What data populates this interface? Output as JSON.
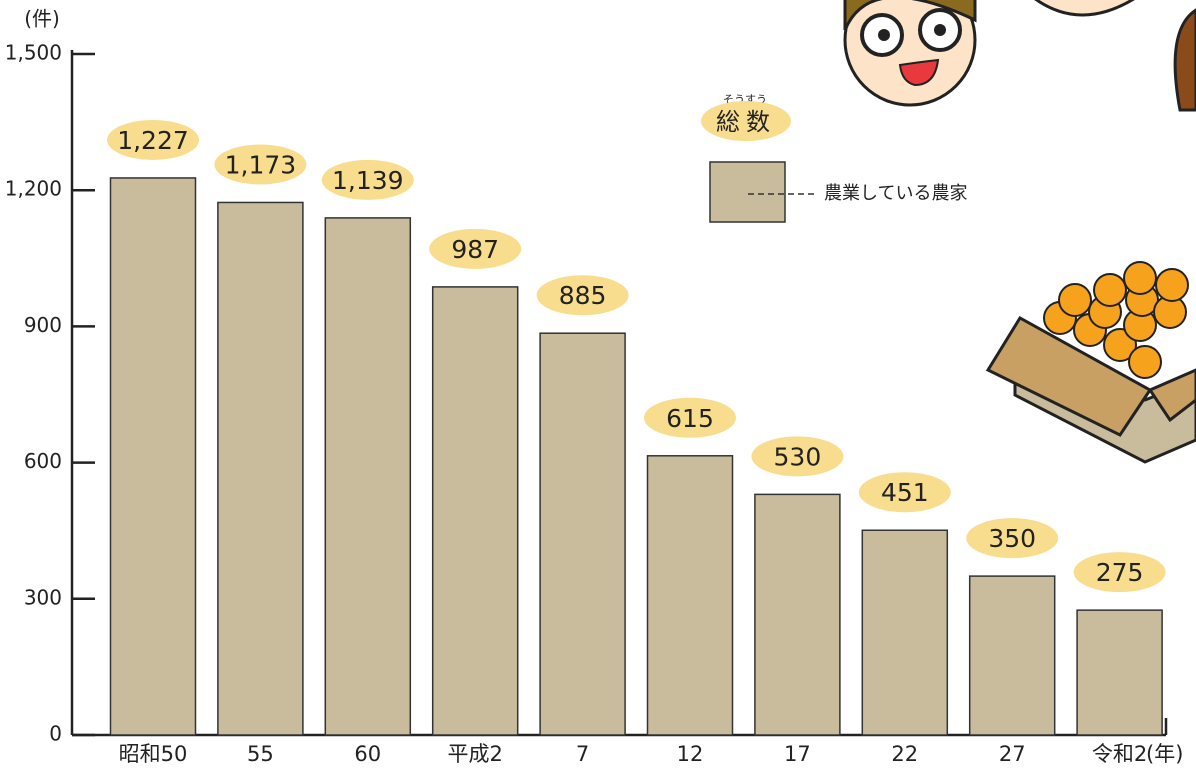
{
  "chart_data": {
    "type": "bar",
    "y_label": "(件)",
    "x_label": "(年)",
    "legend_title": "総数",
    "legend_title_reading": "そうすう",
    "categories": [
      "昭和50",
      "55",
      "60",
      "平成2",
      "7",
      "12",
      "17",
      "22",
      "27",
      "令和2"
    ],
    "series": [
      {
        "name": "農業している農家",
        "color": "#c9bc9c",
        "values": [
          1227,
          1173,
          1139,
          987,
          885,
          615,
          530,
          451,
          350,
          275
        ],
        "value_labels": [
          "1,227",
          "1,173",
          "1,139",
          "987",
          "885",
          "615",
          "530",
          "451",
          "350",
          "275"
        ]
      }
    ],
    "ylim": [
      0,
      1500
    ],
    "yticks": [
      0,
      300,
      600,
      900,
      {
        "value": 1200,
        "label": "1,200"
      },
      {
        "value": 1500,
        "label": "1,500"
      }
    ]
  }
}
